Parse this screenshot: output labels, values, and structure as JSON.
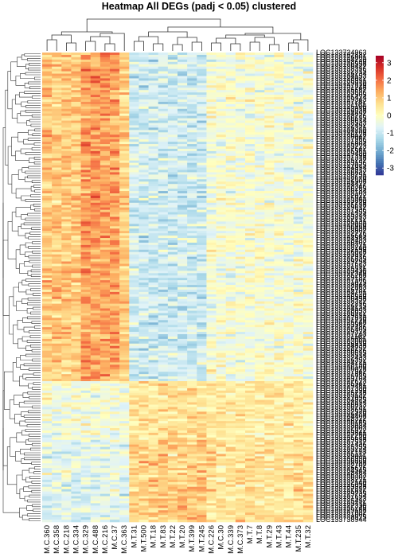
{
  "title": "Heatmap All DEGs (padj < 0.05) clustered",
  "chart_data": {
    "type": "heatmap",
    "title": "Heatmap All DEGs (padj < 0.05) clustered",
    "columns": [
      "M.C.360",
      "M.C.358",
      "M.C.218",
      "M.C.334",
      "M.C.329",
      "M.C.488",
      "M.C.216",
      "M.C.37",
      "M.C.363",
      "M.T.31",
      "M.T.500",
      "M.T.18",
      "M.T.83",
      "M.T.22",
      "M.T.20",
      "M.T.399",
      "M.T.245",
      "M.C.226",
      "M.C.30",
      "M.C.339",
      "M.C.373",
      "M.T.7",
      "M.T.8",
      "M.T.29",
      "M.T.43",
      "M.T.44",
      "M.T.235",
      "M.T.32"
    ],
    "row_prefix": "LOC1",
    "first_row_label": "LOC133724963",
    "last_row_label": "LOC133738944",
    "row_count": 200,
    "legend": {
      "ticks": [
        3,
        2,
        1,
        0,
        -1,
        -2,
        -3
      ],
      "min": -3.4,
      "max": 3.4,
      "colors": [
        "#313695",
        "#4575b4",
        "#74add1",
        "#abd9e9",
        "#e0f3f8",
        "#ffffbf",
        "#fee090",
        "#fdae61",
        "#f46d43",
        "#d73027",
        "#a50026"
      ]
    },
    "column_dendrogram": true,
    "row_dendrogram": true,
    "color_scale": "blue-yellow-red (RdYlBu reversed)"
  }
}
